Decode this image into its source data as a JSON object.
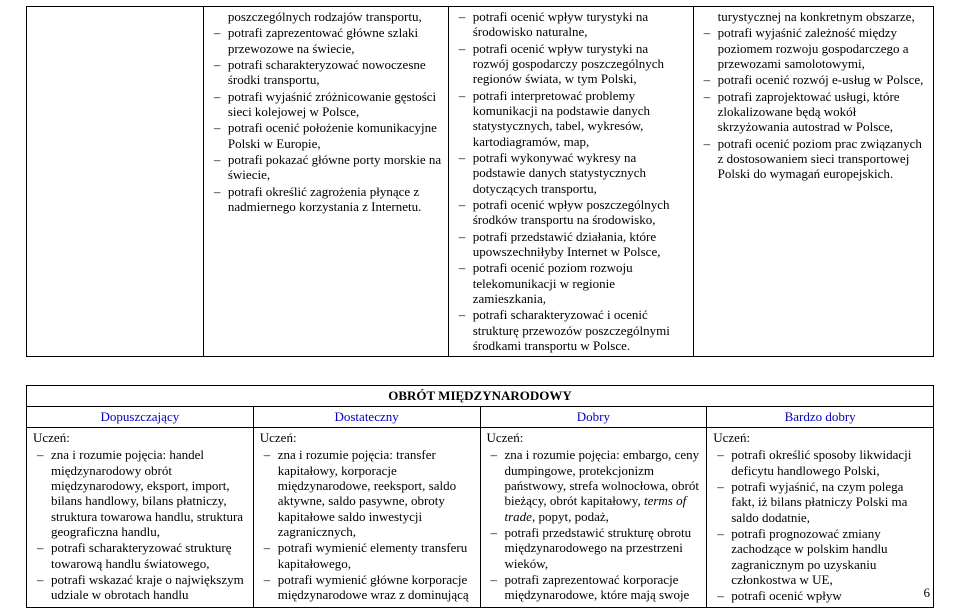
{
  "table1": {
    "col2": [
      "poszczególnych rodzajów transportu,",
      "potrafi zaprezentować główne szlaki przewozowe na świecie,",
      "potrafi scharakteryzować nowoczesne środki transportu,",
      "potrafi wyjaśnić zróżnicowanie gęstości sieci kolejowej w Polsce,",
      "potrafi ocenić położenie komunikacyjne Polski w Europie,",
      "potrafi pokazać główne porty morskie na świecie,",
      "potrafi określić zagrożenia płynące z nadmiernego korzystania z Internetu."
    ],
    "col3": [
      "potrafi ocenić wpływ turystyki na środowisko naturalne,",
      "potrafi ocenić wpływ turystyki na rozwój gospodarczy poszczególnych regionów świata, w tym Polski,",
      "potrafi interpretować problemy komunikacji na podstawie danych statystycznych, tabel, wykresów, kartodiagramów, map,",
      "potrafi wykonywać wykresy na podstawie danych statystycznych dotyczących transportu,",
      "potrafi ocenić wpływ poszczególnych środków transportu na środowisko,",
      "potrafi przedstawić działania, które upowszechniłyby Internet w Polsce,",
      "potrafi ocenić poziom rozwoju telekomunikacji w regionie zamieszkania,",
      "potrafi scharakteryzować i ocenić strukturę przewozów poszczególnymi środkami transportu w Polsce."
    ],
    "col4": [
      "turystycznej na konkretnym obszarze,",
      "potrafi wyjaśnić zależność między poziomem rozwoju gospodarczego a przewozami samolotowymi,",
      "potrafi ocenić rozwój e-usług w Polsce,",
      "potrafi zaprojektować usługi, które zlokalizowane będą wokół skrzyżowania autostrad w Polsce,",
      "potrafi ocenić poziom prac związanych z dostosowaniem sieci  transportowej Polski do wymagań europejskich."
    ]
  },
  "section2_title": "OBRÓT MIĘDZYNARODOWY",
  "headers": {
    "h1": "Dopuszczający",
    "h2": "Dostateczny",
    "h3": "Dobry",
    "h4": "Bardzo dobry"
  },
  "uczen_label": "Uczeń:",
  "table2": {
    "col1": [
      "zna i rozumie pojęcia: handel międzynarodowy   obrót międzynarodowy, eksport, import, bilans handlowy, bilans płatniczy, struktura towarowa handlu, struktura geograficzna handlu,",
      "potrafi scharakteryzować strukturę towarową handlu światowego,",
      "potrafi wskazać kraje o największym udziale w obrotach handlu"
    ],
    "col2": [
      "zna i rozumie pojęcia: transfer kapitałowy, korporacje międzynarodowe, reeksport, saldo aktywne, saldo pasywne, obroty kapitałowe   saldo inwestycji zagranicznych,",
      "potrafi wymienić elementy transferu kapitałowego,",
      "potrafi wymienić główne korporacje międzynarodowe wraz z dominującą"
    ],
    "col3": [
      "zna i rozumie pojęcia: embargo, ceny dumpingowe, protekcjonizm państwowy, strefa wolnocłowa, obrót bieżący, obrót kapitałowy, terms of trade, popyt, podaż,",
      "potrafi przedstawić strukturę obrotu międzynarodowego na przestrzeni wieków,",
      "potrafi zaprezentować korporacje międzynarodowe, które mają swoje"
    ],
    "col4": [
      "potrafi określić sposoby likwidacji deficytu handlowego Polski,",
      "potrafi wyjaśnić, na czym polega fakt, iż bilans płatniczy Polski ma saldo dodatnie,",
      "potrafi prognozować zmiany zachodzące w polskim handlu zagranicznym po uzyskaniu członkostwa w UE,",
      "potrafi ocenić wpływ"
    ]
  },
  "italic_phrase": "terms of trade",
  "page_number": "6"
}
